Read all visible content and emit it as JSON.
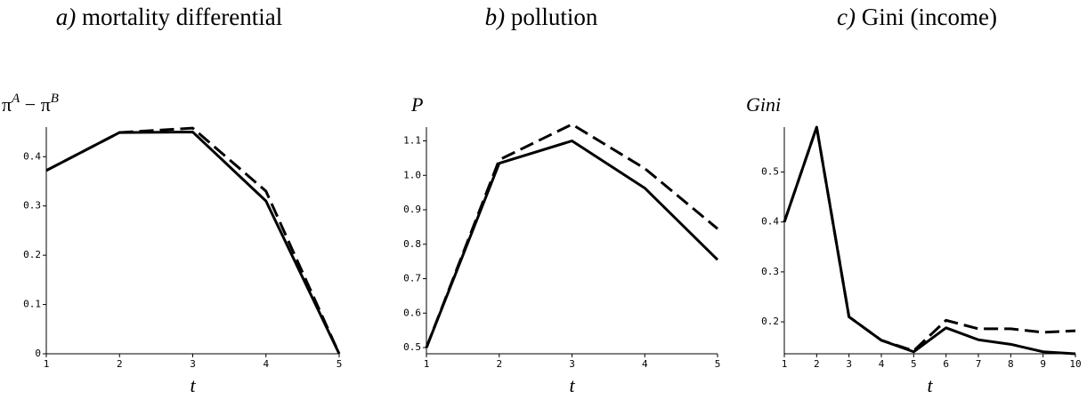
{
  "chart_data": [
    {
      "type": "line",
      "panel": "a)",
      "title": "mortality differential",
      "ylabel": [
        {
          "text": "π"
        },
        {
          "text": "A",
          "sup": true
        },
        {
          "text": " − π"
        },
        {
          "text": "B",
          "sup": true
        }
      ],
      "xlabel": "t",
      "x": [
        1,
        2,
        3,
        4,
        5
      ],
      "xlim": [
        1,
        5
      ],
      "xticks": [
        1,
        2,
        3,
        4,
        5
      ],
      "ylim": [
        0,
        0.46
      ],
      "yticks": [
        0,
        0.1,
        0.2,
        0.3,
        0.4
      ],
      "series": [
        {
          "color": "#000000",
          "dash": false,
          "values": [
            0.372,
            0.449,
            0.45,
            0.31,
            0
          ]
        },
        {
          "color": "#000000",
          "dash": true,
          "values": [
            0.372,
            0.449,
            0.458,
            0.33,
            0
          ]
        }
      ]
    },
    {
      "type": "line",
      "panel": "b)",
      "title": "pollution",
      "ylabel": [
        {
          "text": "P",
          "italic": true
        }
      ],
      "xlabel": "t",
      "x": [
        1,
        2,
        3,
        4,
        5
      ],
      "xlim": [
        1,
        5
      ],
      "xticks": [
        1,
        2,
        3,
        4,
        5
      ],
      "ylim": [
        0.482,
        1.14
      ],
      "yticks": [
        0.5,
        0.6,
        0.7,
        0.8,
        0.9,
        {
          "value": 1,
          "label": "1.0"
        },
        1.1
      ],
      "series": [
        {
          "color": "#000000",
          "dash": false,
          "values": [
            0.5,
            1.035,
            1.1,
            0.963,
            0.755
          ]
        },
        {
          "color": "#000000",
          "dash": true,
          "values": [
            0.5,
            1.045,
            1.148,
            1.02,
            0.845
          ]
        }
      ]
    },
    {
      "type": "line",
      "panel": "c)",
      "title": "Gini (income)",
      "ylabel": [
        {
          "text": "Gini",
          "italic": true
        }
      ],
      "xlabel": "t",
      "x": [
        1,
        2,
        3,
        4,
        5,
        6,
        7,
        8,
        9,
        10
      ],
      "xlim": [
        1,
        10
      ],
      "xticks": [
        1,
        2,
        3,
        4,
        5,
        6,
        7,
        8,
        9,
        10
      ],
      "ylim": [
        0.136,
        0.59
      ],
      "yticks": [
        0.2,
        0.3,
        0.4,
        0.5
      ],
      "series": [
        {
          "color": "#000000",
          "dash": false,
          "values": [
            0.4,
            0.59,
            0.21,
            0.163,
            0.14,
            0.188,
            0.164,
            0.155,
            0.14,
            0.136
          ]
        },
        {
          "color": "#000000",
          "dash": true,
          "values": [
            0.4,
            0.59,
            0.21,
            0.163,
            0.142,
            0.203,
            0.186,
            0.186,
            0.179,
            0.182
          ]
        }
      ]
    }
  ]
}
